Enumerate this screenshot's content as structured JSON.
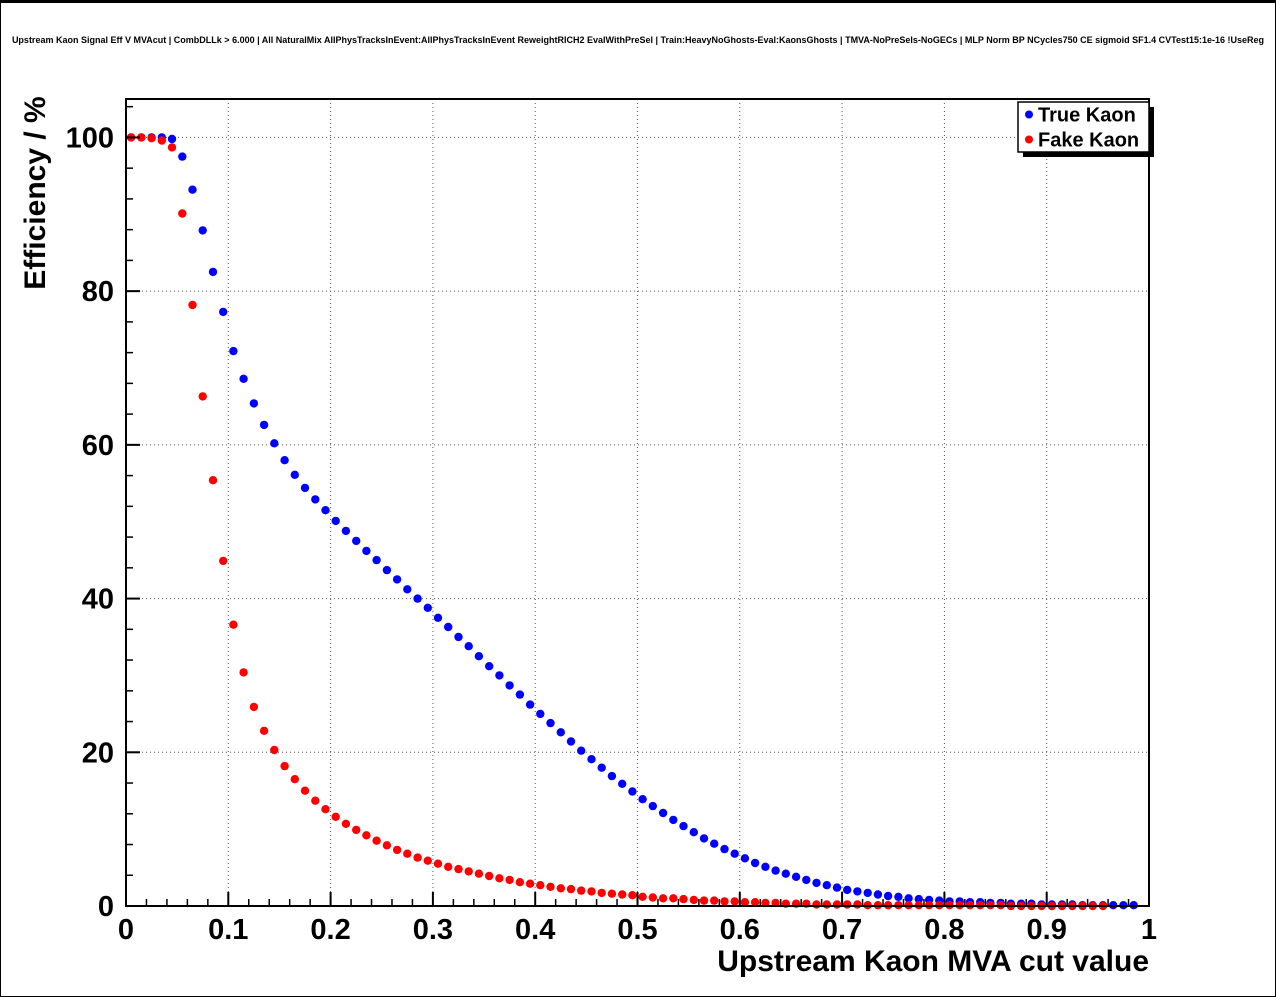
{
  "chart_data": {
    "type": "scatter",
    "title": "Upstream Kaon Signal Eff V MVAcut | CombDLLk > 6.000 | All NaturalMix AllPhysTracksInEvent:AllPhysTracksInEvent ReweightRICH2 EvalWithPreSel | Train:HeavyNoGhosts-Eval:KaonsGhosts | TMVA-NoPreSels-NoGECs | MLP Norm BP NCycles750 CE sigmoid SF1.4 CVTest15:1e-16 !UseReg",
    "xlabel": "Upstream Kaon MVA cut value",
    "ylabel": "Efficiency / %",
    "xlim": [
      0,
      1
    ],
    "ylim": [
      0,
      105
    ],
    "x_ticks": [
      0,
      0.1,
      0.2,
      0.3,
      0.4,
      0.5,
      0.6,
      0.7,
      0.8,
      0.9,
      1
    ],
    "y_ticks": [
      0,
      20,
      40,
      60,
      80,
      100
    ],
    "x_minor_step": 0.02,
    "y_minor_step": 4,
    "grid": "dotted",
    "legend_position": "top-right",
    "series": [
      {
        "name": "True Kaon",
        "color": "#0000ff",
        "marker": "circle",
        "x": [
          0.005,
          0.015,
          0.025,
          0.035,
          0.045,
          0.055,
          0.065,
          0.075,
          0.085,
          0.095,
          0.105,
          0.115,
          0.125,
          0.135,
          0.145,
          0.155,
          0.165,
          0.175,
          0.185,
          0.195,
          0.205,
          0.215,
          0.225,
          0.235,
          0.245,
          0.255,
          0.265,
          0.275,
          0.285,
          0.295,
          0.305,
          0.315,
          0.325,
          0.335,
          0.345,
          0.355,
          0.365,
          0.375,
          0.385,
          0.395,
          0.405,
          0.415,
          0.425,
          0.435,
          0.445,
          0.455,
          0.465,
          0.475,
          0.485,
          0.495,
          0.505,
          0.515,
          0.525,
          0.535,
          0.545,
          0.555,
          0.565,
          0.575,
          0.585,
          0.595,
          0.605,
          0.615,
          0.625,
          0.635,
          0.645,
          0.655,
          0.665,
          0.675,
          0.685,
          0.695,
          0.705,
          0.715,
          0.725,
          0.735,
          0.745,
          0.755,
          0.765,
          0.775,
          0.785,
          0.795,
          0.805,
          0.815,
          0.825,
          0.835,
          0.845,
          0.855,
          0.865,
          0.875,
          0.885,
          0.895,
          0.905,
          0.915,
          0.925,
          0.935,
          0.945,
          0.955,
          0.965,
          0.975,
          0.985
        ],
        "y": [
          100,
          100,
          100,
          100,
          99.8,
          97.5,
          93.2,
          87.9,
          82.5,
          77.3,
          72.2,
          68.6,
          65.4,
          62.6,
          60.2,
          58.0,
          56.1,
          54.4,
          52.9,
          51.5,
          50.1,
          48.8,
          47.5,
          46.2,
          45.0,
          43.7,
          42.5,
          41.2,
          40.0,
          38.8,
          37.5,
          36.3,
          35.0,
          33.8,
          32.5,
          31.2,
          30.0,
          28.7,
          27.5,
          26.2,
          25.0,
          23.8,
          22.6,
          21.4,
          20.2,
          19.1,
          18.0,
          16.9,
          15.9,
          14.9,
          13.9,
          13.0,
          12.1,
          11.2,
          10.4,
          9.6,
          8.8,
          8.1,
          7.4,
          6.8,
          6.2,
          5.6,
          5.1,
          4.6,
          4.2,
          3.8,
          3.4,
          3.0,
          2.7,
          2.4,
          2.1,
          1.9,
          1.7,
          1.5,
          1.3,
          1.2,
          1.0,
          0.9,
          0.8,
          0.7,
          0.6,
          0.6,
          0.5,
          0.5,
          0.4,
          0.4,
          0.3,
          0.3,
          0.3,
          0.2,
          0.2,
          0.2,
          0.2,
          0.1,
          0.1,
          0.1,
          0.1,
          0.1,
          0.1
        ]
      },
      {
        "name": "Fake Kaon",
        "color": "#ff0000",
        "marker": "circle",
        "x": [
          0.005,
          0.015,
          0.025,
          0.035,
          0.045,
          0.055,
          0.065,
          0.075,
          0.085,
          0.095,
          0.105,
          0.115,
          0.125,
          0.135,
          0.145,
          0.155,
          0.165,
          0.175,
          0.185,
          0.195,
          0.205,
          0.215,
          0.225,
          0.235,
          0.245,
          0.255,
          0.265,
          0.275,
          0.285,
          0.295,
          0.305,
          0.315,
          0.325,
          0.335,
          0.345,
          0.355,
          0.365,
          0.375,
          0.385,
          0.395,
          0.405,
          0.415,
          0.425,
          0.435,
          0.445,
          0.455,
          0.465,
          0.475,
          0.485,
          0.495,
          0.505,
          0.515,
          0.525,
          0.535,
          0.545,
          0.555,
          0.565,
          0.575,
          0.585,
          0.595,
          0.605,
          0.615,
          0.625,
          0.635,
          0.645,
          0.655,
          0.665,
          0.675,
          0.685,
          0.695,
          0.705,
          0.715,
          0.725,
          0.735,
          0.745,
          0.755,
          0.765,
          0.775,
          0.785,
          0.795,
          0.805,
          0.815,
          0.825,
          0.835,
          0.845,
          0.855,
          0.865,
          0.875,
          0.885,
          0.895,
          0.905,
          0.915,
          0.925,
          0.935,
          0.945,
          0.955
        ],
        "y": [
          100,
          100,
          99.9,
          99.6,
          98.7,
          90.1,
          78.2,
          66.3,
          55.4,
          44.9,
          36.6,
          30.4,
          25.9,
          22.8,
          20.3,
          18.2,
          16.5,
          15.0,
          13.7,
          12.6,
          11.6,
          10.7,
          9.9,
          9.2,
          8.5,
          7.9,
          7.3,
          6.8,
          6.3,
          5.9,
          5.5,
          5.1,
          4.8,
          4.5,
          4.2,
          3.9,
          3.6,
          3.4,
          3.1,
          2.9,
          2.7,
          2.5,
          2.3,
          2.2,
          2.0,
          1.9,
          1.7,
          1.6,
          1.5,
          1.4,
          1.2,
          1.1,
          1.0,
          1.0,
          0.9,
          0.8,
          0.7,
          0.7,
          0.6,
          0.6,
          0.5,
          0.5,
          0.4,
          0.4,
          0.3,
          0.3,
          0.3,
          0.2,
          0.2,
          0.2,
          0.2,
          0.2,
          0.1,
          0.1,
          0.1,
          0.1,
          0.1,
          0.1,
          0.1,
          0.1,
          0.1,
          0.1,
          0.1,
          0.1,
          0.1,
          0.1,
          0.0,
          0.0,
          0.0,
          0.0,
          0.0,
          0.0,
          0.0,
          0.0,
          0.0,
          0.0
        ]
      }
    ]
  },
  "colors": {
    "background": "#ffffff",
    "frame": "#000000",
    "grid": "#555555",
    "legend_shadow": "#000000"
  }
}
